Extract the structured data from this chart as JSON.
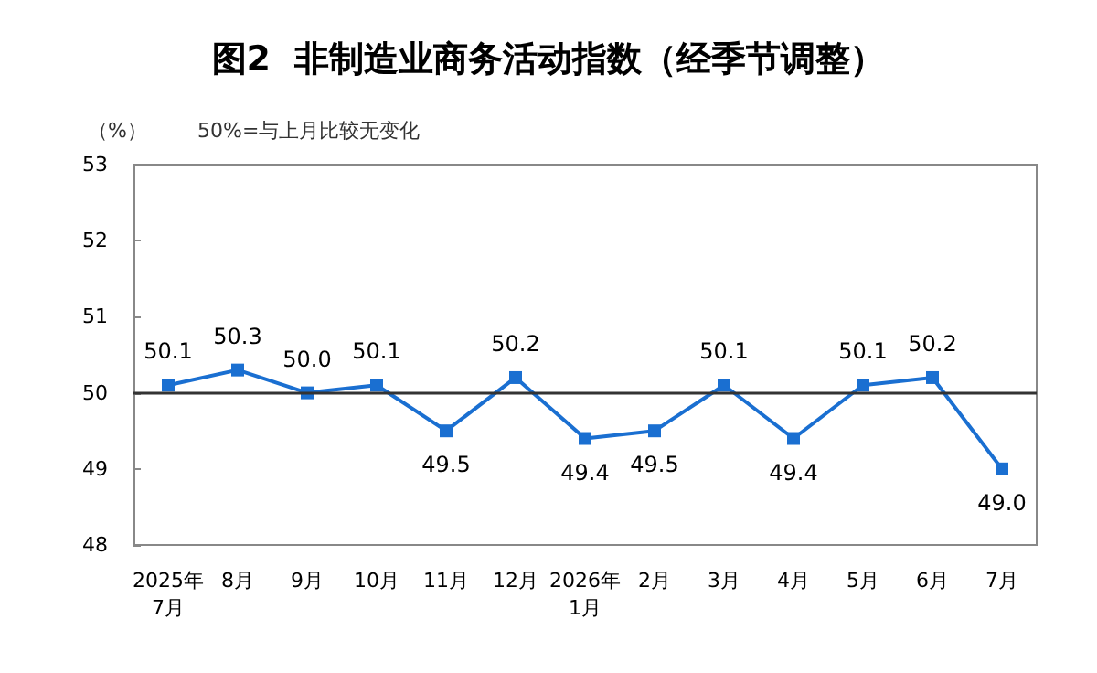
{
  "chart_data": {
    "type": "line",
    "title": "图2  非制造业商务活动指数（经季节调整）",
    "ylabel": "（%）",
    "annotations": [
      "50%=与上月比较无变化"
    ],
    "categories": [
      "2025年\n7月",
      "8月",
      "9月",
      "10月",
      "11月",
      "12月",
      "2026年\n1月",
      "2月",
      "3月",
      "4月",
      "5月",
      "6月",
      "7月"
    ],
    "series": [
      {
        "color": "#1a6fd1",
        "values": [
          50.1,
          50.3,
          50.0,
          50.1,
          49.5,
          50.2,
          49.4,
          49.5,
          50.1,
          49.4,
          50.1,
          50.2,
          49.0
        ]
      }
    ],
    "value_labels": [
      "50.1",
      "50.3",
      "50.0",
      "50.1",
      "49.5",
      "50.2",
      "49.4",
      "49.5",
      "50.1",
      "49.4",
      "50.1",
      "50.2",
      "49.0"
    ],
    "ylim": [
      48,
      53
    ],
    "yticks": [
      48,
      49,
      50,
      51,
      52,
      53
    ],
    "grid": false,
    "marker": "square",
    "line_style": "solid",
    "ref_lines": [
      {
        "axis": "y",
        "value": 50,
        "color": "#333333"
      }
    ]
  }
}
